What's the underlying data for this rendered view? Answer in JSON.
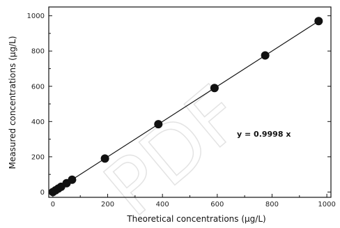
{
  "chart_data": {
    "type": "scatter",
    "title": "",
    "xlabel": "Theoretical concentrations (µg/L)",
    "ylabel": "Measured concentrations (µg/L)",
    "xlim": [
      -15,
      1015
    ],
    "ylim": [
      -30,
      1050
    ],
    "x_ticks": [
      0,
      200,
      400,
      600,
      800,
      1000
    ],
    "y_ticks": [
      0,
      200,
      400,
      600,
      800,
      1000
    ],
    "grid": false,
    "points": [
      {
        "x": 0,
        "y": 0
      },
      {
        "x": 10,
        "y": 10
      },
      {
        "x": 20,
        "y": 20
      },
      {
        "x": 30,
        "y": 30
      },
      {
        "x": 50,
        "y": 50
      },
      {
        "x": 70,
        "y": 70
      },
      {
        "x": 190,
        "y": 190
      },
      {
        "x": 385,
        "y": 385
      },
      {
        "x": 590,
        "y": 590
      },
      {
        "x": 775,
        "y": 775
      },
      {
        "x": 970,
        "y": 970
      }
    ],
    "fit": {
      "slope": 0.9998,
      "x_range": [
        0,
        970
      ],
      "equation": "y = 0.9998 x"
    },
    "watermark": "PDF"
  }
}
